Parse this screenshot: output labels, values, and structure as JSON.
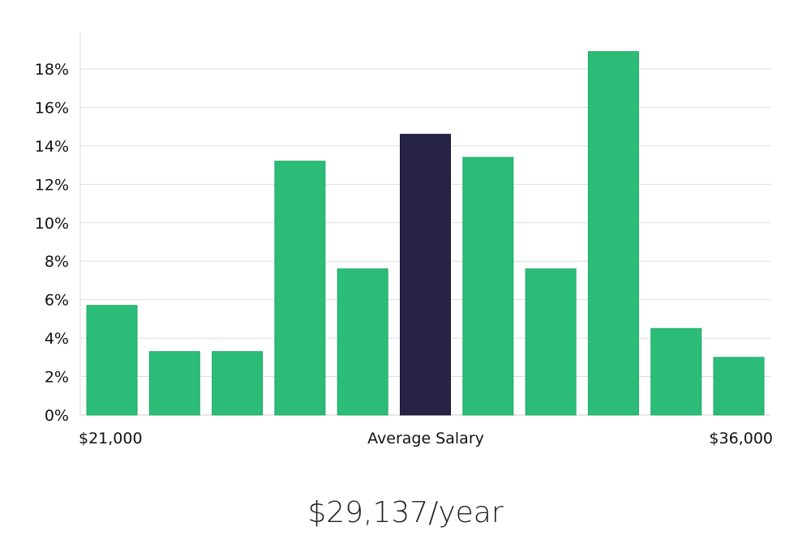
{
  "chart_data": {
    "type": "bar",
    "categories": [
      "1",
      "2",
      "3",
      "4",
      "5",
      "6",
      "7",
      "8",
      "9",
      "10",
      "11"
    ],
    "values": [
      5.7,
      3.3,
      3.3,
      13.2,
      7.6,
      14.6,
      13.4,
      7.6,
      18.9,
      4.5,
      3.0
    ],
    "highlighted_index": 5,
    "ylim": [
      0,
      18
    ],
    "yticks": [
      0,
      2,
      4,
      6,
      8,
      10,
      12,
      14,
      16,
      18
    ],
    "ytick_labels": [
      "0%",
      "2%",
      "4%",
      "6%",
      "8%",
      "10%",
      "12%",
      "14%",
      "16%",
      "18%"
    ],
    "x_min_label": "$21,000",
    "x_max_label": "$36,000",
    "xlabel": "Average Salary",
    "grid": true,
    "colors": {
      "bar": "#2bbd77",
      "highlight": "#262345",
      "grid": "#dddddd"
    }
  },
  "summary": {
    "salary": "$29,137/year"
  }
}
